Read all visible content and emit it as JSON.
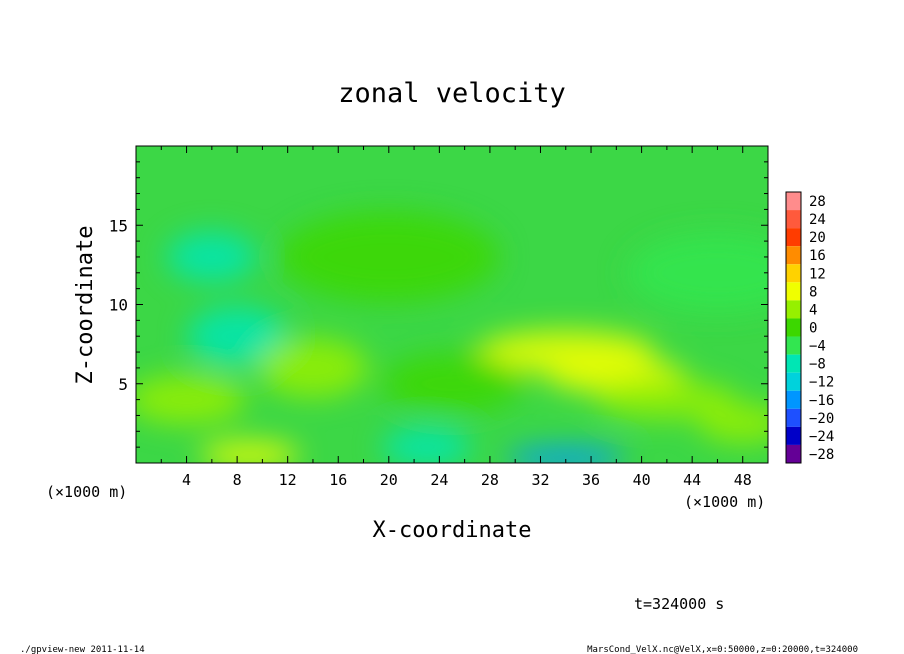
{
  "chart_data": {
    "type": "heatmap",
    "title": "zonal velocity",
    "xlabel": "X-coordinate",
    "ylabel": "Z-coordinate",
    "x_unit_left": "(×1000 m)",
    "x_unit_right": "(×1000 m)",
    "xlim": [
      0,
      50
    ],
    "ylim": [
      0,
      20
    ],
    "xticks": [
      "4",
      "8",
      "12",
      "16",
      "20",
      "24",
      "28",
      "32",
      "36",
      "40",
      "44",
      "48"
    ],
    "xtick_values": [
      4,
      8,
      12,
      16,
      20,
      24,
      28,
      32,
      36,
      40,
      44,
      48
    ],
    "yticks": [
      "5",
      "10",
      "15"
    ],
    "ytick_values": [
      5,
      10,
      15
    ],
    "colorbar": {
      "levels": [
        "28",
        "24",
        "20",
        "16",
        "12",
        "8",
        "4",
        "0",
        "−4",
        "−8",
        "−12",
        "−16",
        "−20",
        "−24",
        "−28"
      ],
      "colors": [
        "#ff8c8c",
        "#ff5a3c",
        "#ff3c00",
        "#ff8c00",
        "#ffd200",
        "#f0ff00",
        "#96f000",
        "#3cd700",
        "#32e650",
        "#00e6b4",
        "#00d2dc",
        "#0096ff",
        "#1e50ff",
        "#0000c8",
        "#640096"
      ]
    },
    "features": [
      {
        "x": 38,
        "z": 5.5,
        "value": 11
      },
      {
        "x": 34,
        "z": 7.0,
        "value": 8
      },
      {
        "x": 42,
        "z": 4.0,
        "value": 7
      },
      {
        "x": 9,
        "z": 0.5,
        "value": 9
      },
      {
        "x": 34,
        "z": 0.3,
        "value": -16
      },
      {
        "x": 23,
        "z": 1.0,
        "value": -8
      },
      {
        "x": 6,
        "z": 13,
        "value": -8
      },
      {
        "x": 8,
        "z": 8,
        "value": -5
      },
      {
        "x": 20,
        "z": 13,
        "value": 3
      },
      {
        "x": 46,
        "z": 12,
        "value": -3
      },
      {
        "x": 4,
        "z": 4,
        "value": 5
      },
      {
        "x": 48,
        "z": 2.5,
        "value": 5
      },
      {
        "x": 14,
        "z": 6,
        "value": 4
      },
      {
        "x": 25,
        "z": 5,
        "value": 3
      }
    ]
  },
  "time_label": "t=324000 s",
  "footer_left": "./gpview-new  2011-11-14",
  "footer_right": "MarsCond_VelX.nc@VelX,x=0:50000,z=0:20000,t=324000"
}
